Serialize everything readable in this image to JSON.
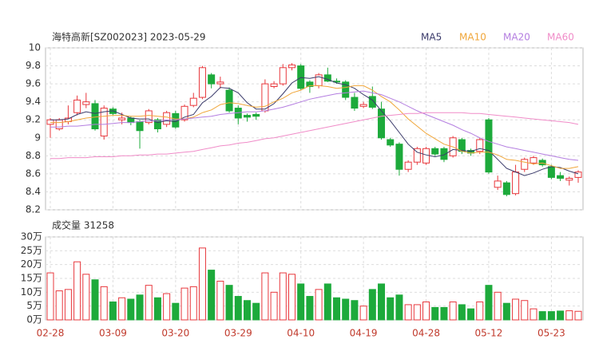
{
  "chart_data": {
    "type": "candlestick",
    "title": "海特高新[SZ002023] 2023-05-29",
    "categories": [
      "02-28",
      null,
      null,
      null,
      null,
      null,
      null,
      "03-09",
      null,
      null,
      null,
      null,
      null,
      null,
      "03-20",
      null,
      null,
      null,
      null,
      null,
      null,
      "03-29",
      null,
      null,
      null,
      null,
      null,
      null,
      "04-10",
      null,
      null,
      null,
      null,
      null,
      null,
      "04-19",
      null,
      null,
      null,
      null,
      null,
      null,
      "04-28",
      null,
      null,
      null,
      null,
      null,
      null,
      "05-12",
      null,
      null,
      null,
      null,
      null,
      null,
      "05-23",
      null,
      null,
      null
    ],
    "open": [
      9.15,
      9.1,
      9.18,
      9.28,
      9.37,
      9.38,
      9.02,
      9.32,
      9.2,
      9.22,
      9.18,
      9.17,
      9.2,
      9.15,
      9.27,
      9.2,
      9.36,
      9.45,
      9.7,
      9.6,
      9.53,
      9.33,
      9.25,
      9.26,
      9.3,
      9.57,
      9.6,
      9.78,
      9.8,
      9.62,
      9.58,
      9.7,
      9.63,
      9.62,
      9.45,
      9.35,
      9.46,
      9.32,
      8.98,
      8.93,
      8.65,
      8.73,
      8.72,
      8.88,
      8.88,
      8.8,
      8.98,
      8.86,
      8.85,
      9.2,
      8.45,
      8.5,
      8.38,
      8.65,
      8.72,
      8.75,
      8.68,
      8.58,
      8.53,
      8.56
    ],
    "high": [
      9.22,
      9.22,
      9.36,
      9.47,
      9.5,
      9.42,
      9.36,
      9.34,
      9.28,
      9.24,
      9.2,
      9.32,
      9.22,
      9.3,
      9.3,
      9.37,
      9.5,
      9.8,
      9.72,
      9.68,
      9.56,
      9.36,
      9.27,
      9.28,
      9.65,
      9.63,
      9.82,
      9.83,
      9.82,
      9.64,
      9.72,
      9.78,
      9.66,
      9.64,
      9.5,
      9.4,
      9.57,
      9.4,
      9.0,
      8.95,
      8.75,
      8.9,
      8.9,
      8.9,
      8.9,
      9.02,
      9.0,
      8.88,
      9.0,
      9.22,
      8.58,
      8.52,
      8.7,
      8.78,
      8.8,
      8.77,
      8.7,
      8.62,
      8.57,
      8.64
    ],
    "low": [
      9.0,
      9.08,
      9.15,
      9.25,
      9.33,
      9.08,
      8.98,
      9.25,
      9.15,
      9.14,
      8.88,
      9.15,
      9.06,
      9.12,
      9.1,
      9.18,
      9.34,
      9.43,
      9.55,
      9.55,
      9.28,
      9.15,
      9.18,
      9.2,
      9.28,
      9.55,
      9.58,
      9.75,
      9.53,
      9.5,
      9.55,
      9.62,
      9.6,
      9.42,
      9.3,
      9.33,
      9.32,
      8.98,
      8.9,
      8.58,
      8.62,
      8.7,
      8.7,
      8.8,
      8.73,
      8.78,
      8.82,
      8.8,
      8.82,
      8.6,
      8.42,
      8.35,
      8.36,
      8.62,
      8.7,
      8.68,
      8.54,
      8.52,
      8.47,
      8.5
    ],
    "close": [
      9.2,
      9.2,
      9.22,
      9.42,
      9.4,
      9.1,
      9.33,
      9.27,
      9.22,
      9.17,
      9.08,
      9.3,
      9.1,
      9.28,
      9.12,
      9.35,
      9.44,
      9.78,
      9.6,
      9.62,
      9.3,
      9.22,
      9.23,
      9.24,
      9.6,
      9.6,
      9.78,
      9.81,
      9.55,
      9.57,
      9.7,
      9.63,
      9.62,
      9.45,
      9.33,
      9.37,
      9.34,
      9.0,
      8.92,
      8.65,
      8.73,
      8.88,
      8.88,
      8.82,
      8.76,
      9.0,
      8.85,
      8.83,
      8.98,
      8.62,
      8.52,
      8.37,
      8.62,
      8.76,
      8.78,
      8.7,
      8.56,
      8.55,
      8.55,
      8.62
    ],
    "up_color": "#e8383d",
    "down_color": "#1daa3b",
    "ylim": [
      8.2,
      10
    ],
    "yticks": [
      8.2,
      8.4,
      8.6,
      8.8,
      9,
      9.2,
      9.4,
      9.6,
      9.8,
      10
    ],
    "grid": true,
    "series": [
      {
        "name": "MA5",
        "color": "#3a3a6a",
        "values": [
          9.2,
          9.2,
          9.21,
          9.26,
          9.29,
          9.27,
          9.29,
          9.3,
          9.26,
          9.22,
          9.21,
          9.21,
          9.17,
          9.19,
          9.18,
          9.23,
          9.26,
          9.39,
          9.46,
          9.56,
          9.55,
          9.5,
          9.39,
          9.32,
          9.32,
          9.38,
          9.49,
          9.61,
          9.67,
          9.66,
          9.68,
          9.65,
          9.61,
          9.59,
          9.55,
          9.48,
          9.42,
          9.3,
          9.19,
          9.06,
          8.93,
          8.84,
          8.81,
          8.79,
          8.81,
          8.87,
          8.86,
          8.85,
          8.88,
          8.86,
          8.76,
          8.66,
          8.62,
          8.58,
          8.61,
          8.65,
          8.68,
          8.67,
          8.63,
          8.6
        ]
      },
      {
        "name": "MA10",
        "color": "#f0a63a",
        "values": [
          9.17,
          9.17,
          9.18,
          9.2,
          9.22,
          9.23,
          9.24,
          9.25,
          9.25,
          9.24,
          9.24,
          9.25,
          9.24,
          9.23,
          9.21,
          9.21,
          9.23,
          9.28,
          9.31,
          9.37,
          9.39,
          9.38,
          9.36,
          9.34,
          9.35,
          9.4,
          9.44,
          9.5,
          9.53,
          9.58,
          9.58,
          9.57,
          9.55,
          9.56,
          9.58,
          9.58,
          9.53,
          9.46,
          9.4,
          9.31,
          9.21,
          9.13,
          9.05,
          8.99,
          8.93,
          8.9,
          8.85,
          8.83,
          8.84,
          8.84,
          8.81,
          8.76,
          8.75,
          8.73,
          8.71,
          8.72,
          8.69,
          8.66,
          8.66,
          8.68
        ]
      },
      {
        "name": "MA20",
        "color": "#b47ee0",
        "values": [
          9.12,
          9.12,
          9.13,
          9.13,
          9.14,
          9.15,
          9.15,
          9.16,
          9.17,
          9.17,
          9.18,
          9.19,
          9.19,
          9.2,
          9.2,
          9.21,
          9.22,
          9.23,
          9.24,
          9.26,
          9.27,
          9.28,
          9.29,
          9.29,
          9.3,
          9.32,
          9.34,
          9.37,
          9.4,
          9.43,
          9.45,
          9.47,
          9.49,
          9.5,
          9.51,
          9.52,
          9.5,
          9.48,
          9.44,
          9.4,
          9.35,
          9.3,
          9.26,
          9.22,
          9.18,
          9.14,
          9.09,
          9.05,
          9,
          8.96,
          8.93,
          8.9,
          8.88,
          8.86,
          8.84,
          8.82,
          8.8,
          8.78,
          8.76,
          8.75
        ]
      },
      {
        "name": "MA60",
        "color": "#f08cc8",
        "values": [
          8.77,
          8.77,
          8.78,
          8.78,
          8.78,
          8.79,
          8.79,
          8.79,
          8.8,
          8.8,
          8.81,
          8.81,
          8.82,
          8.82,
          8.83,
          8.84,
          8.85,
          8.87,
          8.89,
          8.91,
          8.92,
          8.94,
          8.95,
          8.97,
          8.99,
          9,
          9.02,
          9.04,
          9.06,
          9.08,
          9.1,
          9.12,
          9.14,
          9.16,
          9.18,
          9.2,
          9.22,
          9.24,
          9.25,
          9.26,
          9.27,
          9.27,
          9.28,
          9.28,
          9.28,
          9.28,
          9.28,
          9.27,
          9.27,
          9.26,
          9.25,
          9.24,
          9.23,
          9.22,
          9.21,
          9.2,
          9.19,
          9.18,
          9.17,
          9.15
        ]
      }
    ],
    "volume": {
      "type": "bar",
      "title": "成交量 31258",
      "values": [
        17,
        10.5,
        11,
        21,
        16.5,
        14.5,
        12,
        6.5,
        8,
        7.5,
        9,
        12.5,
        8,
        9.5,
        6,
        11.5,
        12,
        26,
        18,
        14,
        12.5,
        8.5,
        7,
        6,
        17,
        10,
        17,
        16.5,
        13,
        8.5,
        11,
        13,
        8,
        7.5,
        7,
        5,
        11,
        13,
        8,
        9,
        5.5,
        5.5,
        6.5,
        4.5,
        4.5,
        6.5,
        5.5,
        4,
        6.5,
        12.5,
        10,
        6,
        7.5,
        7,
        4,
        3,
        3,
        3.2,
        3.3,
        3.1
      ],
      "ylim": [
        0,
        30
      ],
      "yticks": [
        {
          "value": 0,
          "label": "0万"
        },
        {
          "value": 5,
          "label": "5万"
        },
        {
          "value": 10,
          "label": "10万"
        },
        {
          "value": 15,
          "label": "15万"
        },
        {
          "value": 20,
          "label": "20万"
        },
        {
          "value": 25,
          "label": "25万"
        },
        {
          "value": 30,
          "label": "30万"
        }
      ]
    }
  }
}
